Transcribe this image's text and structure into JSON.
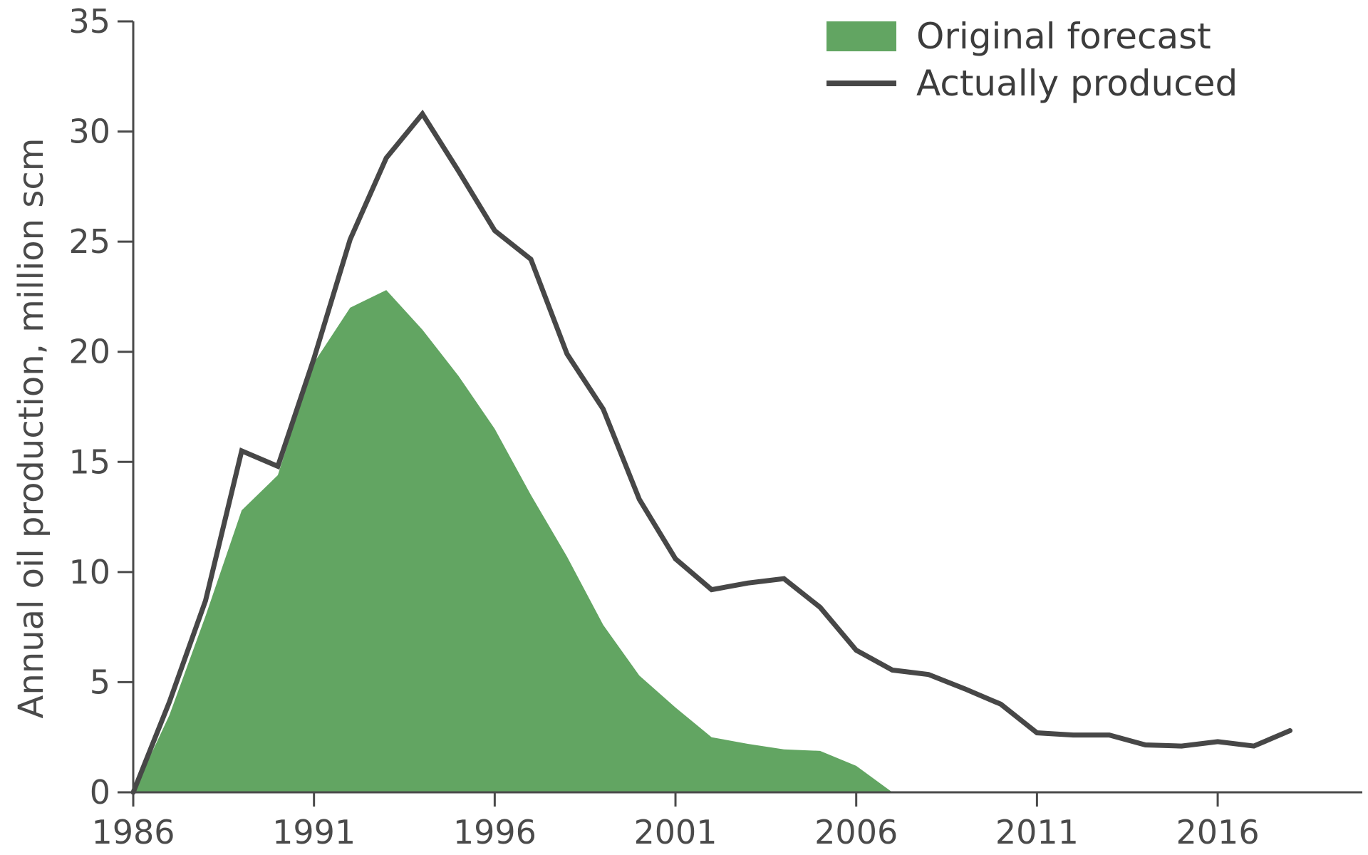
{
  "chart_data": {
    "type": "area",
    "xlabel": "",
    "ylabel": "Annual oil production, million scm",
    "xlim": [
      1986,
      2020
    ],
    "ylim": [
      0,
      35
    ],
    "x_ticks": [
      1986,
      1991,
      1996,
      2001,
      2006,
      2011,
      2016
    ],
    "y_ticks": [
      0,
      5,
      10,
      15,
      20,
      25,
      30,
      35
    ],
    "grid": false,
    "legend_position": "top-right",
    "colors": {
      "forecast": "#62a562",
      "actual": "#474747",
      "axis": "#4a4a4a"
    },
    "series": [
      {
        "name": "Original forecast",
        "kind": "area",
        "x": [
          1986,
          1987,
          1988,
          1989,
          1990,
          1991,
          1992,
          1993,
          1994,
          1995,
          1996,
          1997,
          1998,
          1999,
          2000,
          2001,
          2002,
          2003,
          2004,
          2005,
          2006,
          2007
        ],
        "values": [
          0,
          3.5,
          8,
          12.8,
          14.4,
          19.5,
          22,
          22.8,
          21,
          18.9,
          16.5,
          13.5,
          10.7,
          7.6,
          5.3,
          3.85,
          2.5,
          2.2,
          1.95,
          1.88,
          1.2,
          0
        ]
      },
      {
        "name": "Actually produced",
        "kind": "line",
        "x": [
          1986,
          1987,
          1988,
          1989,
          1990,
          1991,
          1992,
          1993,
          1994,
          1995,
          1996,
          1997,
          1998,
          1999,
          2000,
          2001,
          2002,
          2003,
          2004,
          2005,
          2006,
          2007,
          2008,
          2009,
          2010,
          2011,
          2012,
          2013,
          2014,
          2015,
          2016,
          2017,
          2018
        ],
        "values": [
          0,
          4.1,
          8.7,
          15.5,
          14.8,
          19.7,
          25.1,
          28.8,
          30.8,
          28.2,
          25.5,
          24.2,
          19.9,
          17.4,
          13.3,
          10.6,
          9.2,
          9.5,
          9.7,
          8.4,
          6.45,
          5.55,
          5.35,
          4.7,
          4.0,
          2.7,
          2.6,
          2.6,
          2.15,
          2.1,
          2.3,
          2.1,
          2.8
        ]
      }
    ]
  },
  "legend": {
    "items": [
      {
        "label": "Original forecast",
        "swatch": "area"
      },
      {
        "label": "Actually produced",
        "swatch": "line"
      }
    ]
  }
}
